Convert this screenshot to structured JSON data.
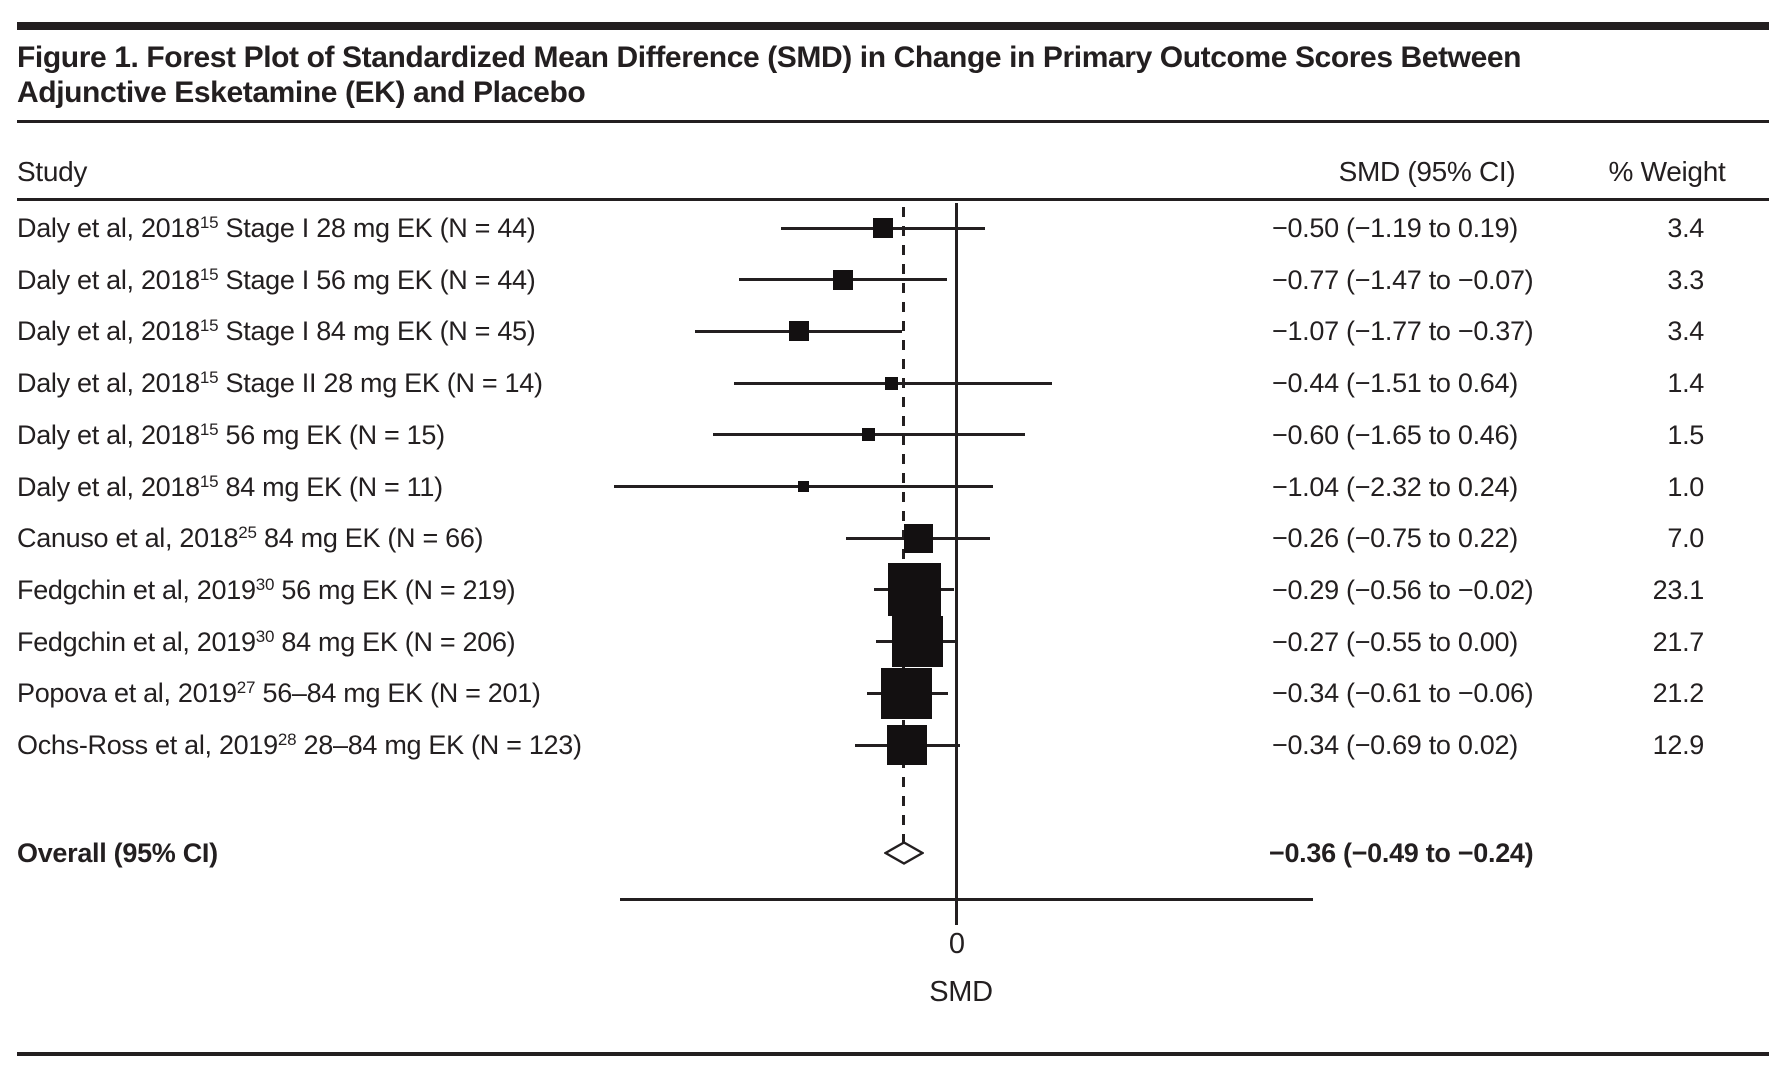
{
  "figure": {
    "title_line1": "Figure 1. Forest Plot of Standardized Mean Difference (SMD) in Change in Primary Outcome Scores Between",
    "title_line2": "Adjunctive Esketamine (EK) and Placebo"
  },
  "table": {
    "columns": {
      "study": "Study",
      "smd": "SMD (95% CI)",
      "weight": "% Weight"
    }
  },
  "colors": {
    "ink": "#231f20",
    "marker": "#131011"
  },
  "chart_data": {
    "type": "scatter",
    "chart_subtype": "forest_plot",
    "title": "Figure 1. Forest Plot of Standardized Mean Difference (SMD) in Change in Primary Outcome Scores Between Adjunctive Esketamine (EK) and Placebo",
    "xlabel": "SMD",
    "x_tick_labels": [
      "0"
    ],
    "xlim": [
      -2.28,
      2.41
    ],
    "null_line_x": 0,
    "overall_dashed_line_x": -0.36,
    "grid": "off",
    "studies": [
      {
        "label_pre": "Daly et al, 2018",
        "label_sup": "15",
        "label_post": " Stage I 28 mg EK (N = 44)",
        "smd": -0.5,
        "ci_low": -1.19,
        "ci_high": 0.19,
        "smd_text": "−0.50 (−1.19 to 0.19)",
        "weight": "3.4"
      },
      {
        "label_pre": "Daly et al, 2018",
        "label_sup": "15",
        "label_post": " Stage I 56 mg EK (N = 44)",
        "smd": -0.77,
        "ci_low": -1.47,
        "ci_high": -0.07,
        "smd_text": "−0.77 (−1.47 to −0.07)",
        "weight": "3.3"
      },
      {
        "label_pre": "Daly et al, 2018",
        "label_sup": "15",
        "label_post": " Stage I 84 mg EK (N = 45)",
        "smd": -1.07,
        "ci_low": -1.77,
        "ci_high": -0.37,
        "smd_text": "−1.07 (−1.77 to −0.37)",
        "weight": "3.4"
      },
      {
        "label_pre": "Daly et al, 2018",
        "label_sup": "15",
        "label_post": " Stage II 28 mg EK (N = 14)",
        "smd": -0.44,
        "ci_low": -1.51,
        "ci_high": 0.64,
        "smd_text": "−0.44 (−1.51 to 0.64)",
        "weight": "1.4"
      },
      {
        "label_pre": "Daly et al, 2018",
        "label_sup": "15",
        "label_post": " 56 mg EK (N = 15)",
        "smd": -0.6,
        "ci_low": -1.65,
        "ci_high": 0.46,
        "smd_text": "−0.60 (−1.65 to 0.46)",
        "weight": "1.5"
      },
      {
        "label_pre": "Daly et al, 2018",
        "label_sup": "15",
        "label_post": " 84 mg EK (N = 11)",
        "smd": -1.04,
        "ci_low": -2.32,
        "ci_high": 0.24,
        "smd_text": "−1.04 (−2.32 to 0.24)",
        "weight": "1.0"
      },
      {
        "label_pre": "Canuso et al, 2018",
        "label_sup": "25",
        "label_post": " 84 mg EK (N = 66)",
        "smd": -0.26,
        "ci_low": -0.75,
        "ci_high": 0.22,
        "smd_text": "−0.26 (−0.75 to 0.22)",
        "weight": "7.0"
      },
      {
        "label_pre": "Fedgchin et al, 2019",
        "label_sup": "30",
        "label_post": " 56 mg EK (N = 219)",
        "smd": -0.29,
        "ci_low": -0.56,
        "ci_high": -0.02,
        "smd_text": "−0.29 (−0.56 to −0.02)",
        "weight": "23.1"
      },
      {
        "label_pre": "Fedgchin et al, 2019",
        "label_sup": "30",
        "label_post": " 84 mg EK (N = 206)",
        "smd": -0.27,
        "ci_low": -0.55,
        "ci_high": 0.0,
        "smd_text": "−0.27 (−0.55 to 0.00)",
        "weight": "21.7"
      },
      {
        "label_pre": "Popova et al, 2019",
        "label_sup": "27",
        "label_post": " 56–84 mg EK (N = 201)",
        "smd": -0.34,
        "ci_low": -0.61,
        "ci_high": -0.06,
        "smd_text": "−0.34 (−0.61 to −0.06)",
        "weight": "21.2"
      },
      {
        "label_pre": "Ochs-Ross et al, 2019",
        "label_sup": "28",
        "label_post": " 28–84 mg EK (N = 123)",
        "smd": -0.34,
        "ci_low": -0.69,
        "ci_high": 0.02,
        "smd_text": "−0.34 (−0.69 to 0.02)",
        "weight": "12.9"
      }
    ],
    "overall": {
      "label": "Overall (95% CI)",
      "smd": -0.36,
      "ci_low": -0.49,
      "ci_high": -0.24,
      "smd_text": "−0.36 (−0.49 to −0.24)"
    }
  }
}
